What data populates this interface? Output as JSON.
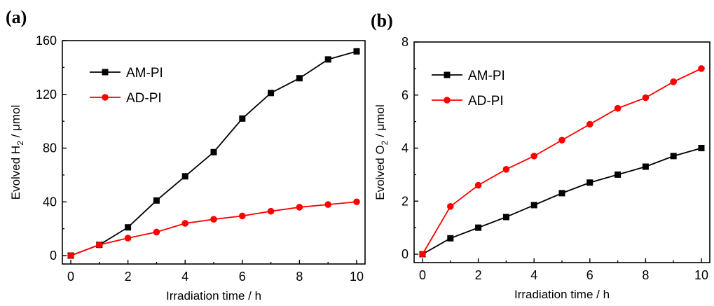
{
  "chart_data": [
    {
      "type": "line",
      "panel_label": "(a)",
      "xlabel": "Irradiation time / h",
      "ylabel_parts": [
        "Evolved H",
        "2",
        " / μmol"
      ],
      "x": [
        0,
        1,
        2,
        3,
        4,
        5,
        6,
        7,
        8,
        9,
        10
      ],
      "xlim": [
        0,
        10
      ],
      "ylim": [
        0,
        160
      ],
      "xticks": [
        0,
        2,
        4,
        6,
        8,
        10
      ],
      "yticks": [
        0,
        40,
        80,
        120,
        160
      ],
      "legend_position": "top-left",
      "series": [
        {
          "name": "AM-PI",
          "color": "#000000",
          "marker": "square",
          "values": [
            0,
            8,
            21,
            41,
            59,
            77,
            102,
            121,
            132,
            146,
            152
          ]
        },
        {
          "name": "AD-PI",
          "color": "#ff0000",
          "marker": "circle",
          "values": [
            0,
            8,
            13,
            17.5,
            24,
            27,
            29.5,
            33,
            36,
            38,
            40
          ]
        }
      ]
    },
    {
      "type": "line",
      "panel_label": "(b)",
      "xlabel": "Irradiation time / h",
      "ylabel_parts": [
        "Evolved O",
        "2",
        " / μmol"
      ],
      "x": [
        0,
        1,
        2,
        3,
        4,
        5,
        6,
        7,
        8,
        9,
        10
      ],
      "xlim": [
        0,
        10
      ],
      "ylim": [
        0,
        8
      ],
      "xticks": [
        0,
        2,
        4,
        6,
        8,
        10
      ],
      "yticks": [
        0,
        2,
        4,
        6,
        8
      ],
      "legend_position": "top-left",
      "series": [
        {
          "name": "AM-PI",
          "color": "#000000",
          "marker": "square",
          "values": [
            0,
            0.6,
            1.0,
            1.4,
            1.85,
            2.3,
            2.7,
            3.0,
            3.3,
            3.7,
            4.0
          ]
        },
        {
          "name": "AD-PI",
          "color": "#ff0000",
          "marker": "circle",
          "values": [
            0,
            1.8,
            2.6,
            3.2,
            3.7,
            4.3,
            4.9,
            5.5,
            5.9,
            6.5,
            7.0
          ]
        }
      ]
    }
  ]
}
